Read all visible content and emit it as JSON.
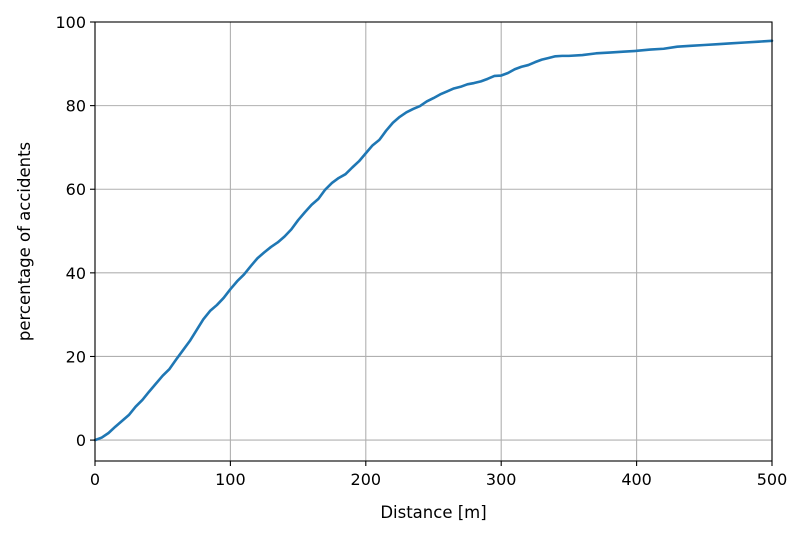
{
  "chart_data": {
    "type": "line",
    "xlabel": "Distance [m]",
    "ylabel": "percentage of accidents",
    "xlim": [
      0,
      500
    ],
    "ylim": [
      -5,
      100
    ],
    "xticks": [
      0,
      100,
      200,
      300,
      400,
      500
    ],
    "yticks": [
      0,
      20,
      40,
      60,
      80,
      100
    ],
    "x_tick_labels": [
      "0",
      "100",
      "200",
      "300",
      "400",
      "500"
    ],
    "y_tick_labels": [
      "0",
      "20",
      "40",
      "60",
      "80",
      "100"
    ],
    "grid": true,
    "line_color": "#1f77b4",
    "grid_color": "#b0b0b0",
    "series": [
      {
        "x": [
          0,
          5,
          10,
          15,
          20,
          25,
          30,
          35,
          40,
          45,
          50,
          55,
          60,
          65,
          70,
          75,
          80,
          85,
          90,
          95,
          100,
          105,
          110,
          115,
          120,
          125,
          130,
          135,
          140,
          145,
          150,
          155,
          160,
          165,
          170,
          175,
          180,
          185,
          190,
          195,
          200,
          205,
          210,
          215,
          220,
          225,
          230,
          235,
          240,
          245,
          250,
          255,
          260,
          265,
          270,
          275,
          280,
          285,
          290,
          295,
          300,
          305,
          310,
          315,
          320,
          325,
          330,
          335,
          340,
          345,
          350,
          360,
          370,
          380,
          390,
          400,
          410,
          420,
          430,
          440,
          450,
          460,
          470,
          480,
          490,
          500
        ],
        "y": [
          0,
          0.6,
          1.7,
          3.2,
          4.6,
          6,
          8,
          9.6,
          11.6,
          13.5,
          15.4,
          17,
          19.3,
          21.5,
          23.7,
          26.3,
          28.9,
          30.9,
          32.3,
          34,
          36.1,
          38,
          39.6,
          41.6,
          43.5,
          44.9,
          46.2,
          47.3,
          48.7,
          50.4,
          52.6,
          54.5,
          56.3,
          57.7,
          59.9,
          61.5,
          62.7,
          63.6,
          65.2,
          66.7,
          68.6,
          70.5,
          71.8,
          74,
          75.9,
          77.3,
          78.4,
          79.2,
          79.9,
          81,
          81.8,
          82.7,
          83.4,
          84.1,
          84.5,
          85.1,
          85.4,
          85.8,
          86.4,
          87.1,
          87.2,
          87.8,
          88.7,
          89.3,
          89.7,
          90.4,
          91,
          91.4,
          91.8,
          91.9,
          91.9,
          92.1,
          92.5,
          92.7,
          92.9,
          93.1,
          93.4,
          93.6,
          94.1,
          94.3,
          94.5,
          94.7,
          94.9,
          95.1,
          95.3,
          95.5
        ]
      }
    ]
  }
}
